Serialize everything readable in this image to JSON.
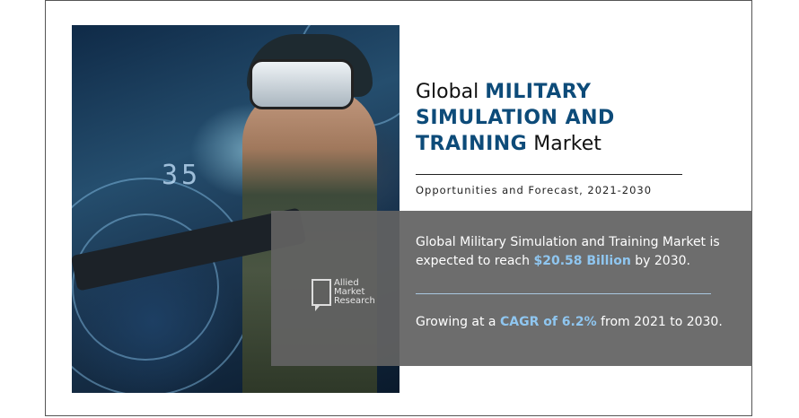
{
  "title": {
    "prefix": "Global",
    "bold_line1": "MILITARY",
    "bold_line2": "SIMULATION AND",
    "bold_line3": "TRAINING",
    "suffix": "Market"
  },
  "subtitle": "Opportunities and Forecast, 2021-2030",
  "stat_market": {
    "before": "Global Military Simulation and Training Market is expected to reach",
    "highlight": "$20.58 Billion",
    "after": "by 2030."
  },
  "stat_cagr": {
    "before": "Growing at a",
    "highlight": "CAGR of 6.2%",
    "after": "from 2021 to 2030."
  },
  "logo": {
    "line1": "Allied",
    "line2": "Market",
    "line3": "Research"
  },
  "photo_hud_text": "35",
  "colors": {
    "title_blue": "#0d4b79",
    "highlight_blue": "#8fc6f0",
    "panel_gray": "#626262"
  }
}
